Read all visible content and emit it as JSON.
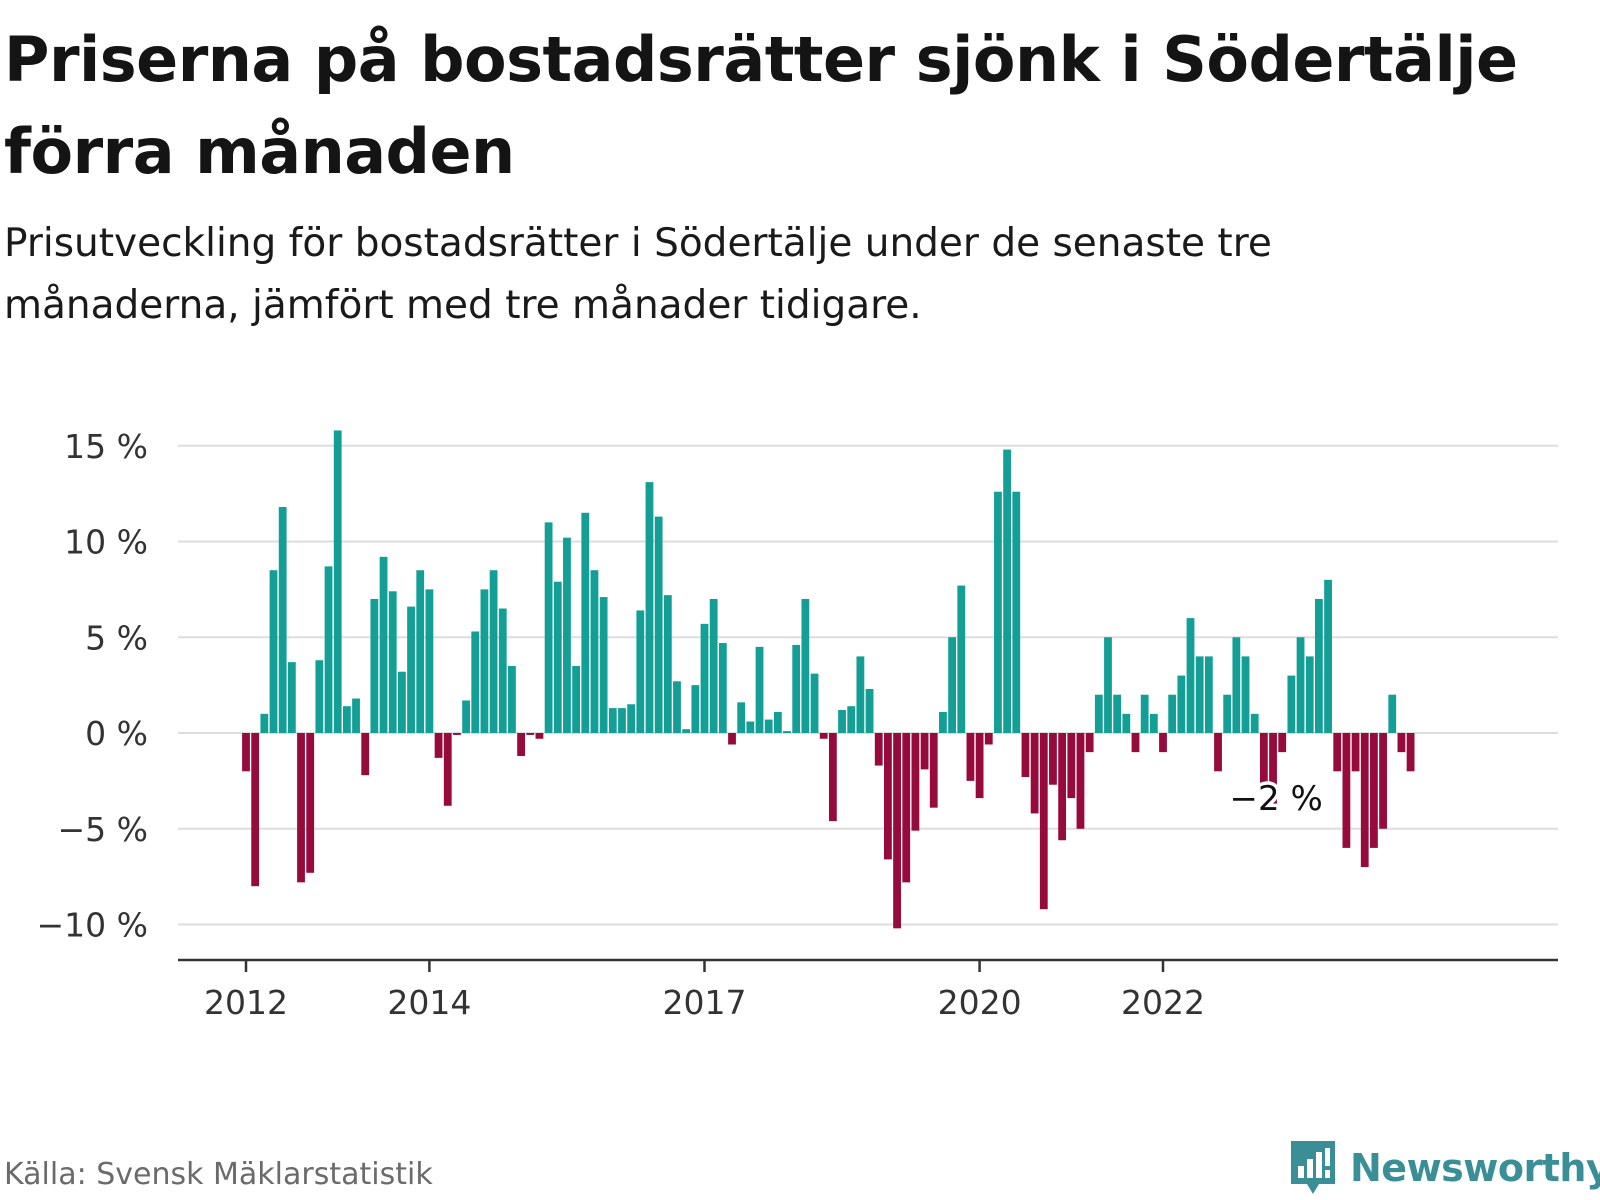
{
  "header": {
    "title": "Priserna på bostadsrätter sjönk i Södertälje förra månaden",
    "subtitle": "Prisutveckling för bostadsrätter i Södertälje under de senaste tre månaderna, jämfört med tre månader tidigare."
  },
  "footer": {
    "source": "Källa: Svensk Mäklarstatistik",
    "brand": "Newsworthy",
    "brand_icon": "bar-chart-speech-bubble-icon"
  },
  "colors": {
    "positive": "#139e96",
    "negative": "#960a3c",
    "grid": "#dddddd",
    "axis": "#333333",
    "text": "#333333",
    "brand": "#3a8f96"
  },
  "chart_data": {
    "type": "bar",
    "y_unit": "%",
    "ylim": [
      -11,
      16
    ],
    "y_ticks": [
      15,
      10,
      5,
      0,
      -5,
      -10
    ],
    "y_tick_labels": [
      "15 %",
      "10 %",
      "5 %",
      "0 %",
      "−5 %",
      "−10 %"
    ],
    "x_tick_labels": [
      {
        "label": "2012",
        "index": 0
      },
      {
        "label": "2014",
        "index": 20
      },
      {
        "label": "2017",
        "index": 50
      },
      {
        "label": "2020",
        "index": 80
      },
      {
        "label": "2022",
        "index": 100
      }
    ],
    "grid": true,
    "legend": "none",
    "annotation": {
      "text": "−2 %",
      "index": 109
    },
    "values": [
      -2,
      -8,
      1,
      8.5,
      11.8,
      3.7,
      -7.8,
      -7.3,
      3.8,
      8.7,
      15.8,
      1.4,
      1.8,
      -2.2,
      7,
      9.2,
      7.4,
      3.2,
      6.6,
      8.5,
      7.5,
      -1.3,
      -3.8,
      -0.1,
      1.7,
      5.3,
      7.5,
      8.5,
      6.5,
      3.5,
      -1.2,
      -0.1,
      -0.3,
      11,
      7.9,
      10.2,
      3.5,
      11.5,
      8.5,
      7.1,
      1.3,
      1.3,
      1.5,
      6.4,
      13.1,
      11.3,
      7.2,
      2.7,
      0.2,
      2.5,
      5.7,
      7,
      4.7,
      -0.6,
      1.6,
      0.6,
      4.5,
      0.7,
      1.1,
      0.1,
      4.6,
      7,
      3.1,
      -0.3,
      -4.6,
      1.2,
      1.4,
      4,
      2.3,
      -1.7,
      -6.6,
      -10.2,
      -7.8,
      -5.1,
      -1.9,
      -3.9,
      1.1,
      5,
      7.7,
      -2.5,
      -3.4,
      -0.6,
      12.6,
      14.8,
      12.6,
      -2.3,
      -4.2,
      -9.2,
      -2.7,
      -5.6,
      -3.4,
      -5,
      -1,
      2,
      5,
      2,
      1,
      -1,
      2,
      1,
      -1,
      2,
      3,
      6,
      4,
      4,
      -2,
      2,
      5,
      4,
      1,
      -3,
      -4,
      -1,
      3,
      5,
      4,
      7,
      8,
      -2,
      -6,
      -2,
      -7,
      -6,
      -5,
      2,
      -1,
      -2
    ]
  }
}
